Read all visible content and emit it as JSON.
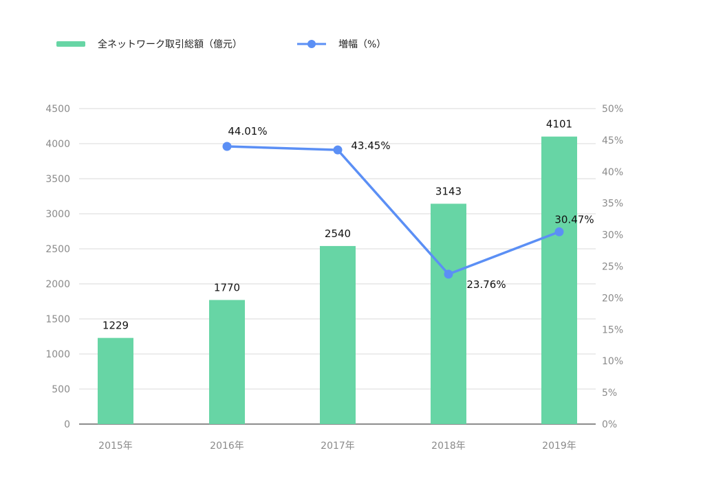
{
  "chart_data": {
    "type": "bar",
    "categories": [
      "2015年",
      "2016年",
      "2017年",
      "2018年",
      "2019年"
    ],
    "series": [
      {
        "name": "全ネットワーク取引総額（億元）",
        "type": "bar",
        "axis": "left",
        "values": [
          1229,
          1770,
          2540,
          3143,
          4101
        ],
        "color": "#67d5a5"
      },
      {
        "name": "増幅（%）",
        "type": "line",
        "axis": "right",
        "values": [
          null,
          44.01,
          43.45,
          23.76,
          30.47
        ],
        "labels": [
          "",
          "44.01%",
          "43.45%",
          "23.76%",
          "30.47%"
        ],
        "color": "#5b8ff5"
      }
    ],
    "y_left": {
      "min": 0,
      "max": 4500,
      "ticks": [
        0,
        500,
        1000,
        1500,
        2000,
        2500,
        3000,
        3500,
        4000,
        4500
      ]
    },
    "y_right": {
      "min": 0,
      "max": 50,
      "ticks": [
        "0%",
        "5%",
        "10%",
        "15%",
        "20%",
        "25%",
        "30%",
        "35%",
        "40%",
        "45%",
        "50%"
      ]
    },
    "grid": true,
    "legend_position": "top-left"
  }
}
